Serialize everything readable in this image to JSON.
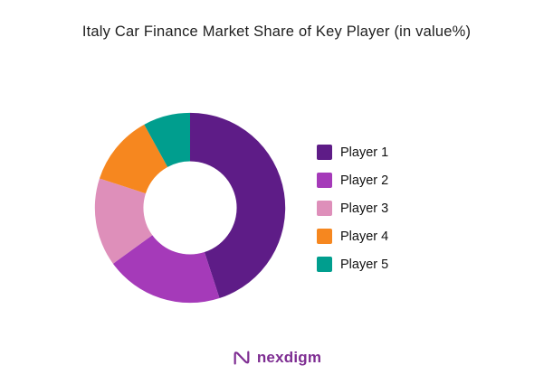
{
  "title": "Italy Car Finance Market Share of Key Player (in value%)",
  "chart_data": {
    "type": "pie",
    "subtype": "donut",
    "title": "Italy Car Finance Market Share of Key Player (in value%)",
    "categories": [
      "Player 1",
      "Player 2",
      "Player 3",
      "Player 4",
      "Player 5"
    ],
    "values": [
      45,
      20,
      15,
      12,
      8
    ],
    "unit": "value %",
    "colors": [
      "#5e1c87",
      "#a53ab9",
      "#de8fba",
      "#f6871f",
      "#009e8e"
    ],
    "legend_position": "right",
    "donut_hole_ratio": 0.49,
    "start_angle_deg": 0,
    "direction": "clockwise",
    "hole_color": "#ffffff",
    "background": "#ffffff"
  },
  "legend": {
    "items": [
      {
        "label": "Player 1",
        "color": "#5e1c87"
      },
      {
        "label": "Player 2",
        "color": "#a53ab9"
      },
      {
        "label": "Player 3",
        "color": "#de8fba"
      },
      {
        "label": "Player 4",
        "color": "#f6871f"
      },
      {
        "label": "Player 5",
        "color": "#009e8e"
      }
    ]
  },
  "footer": {
    "brand": "nexdigm",
    "brand_color": "#7e2d92"
  }
}
